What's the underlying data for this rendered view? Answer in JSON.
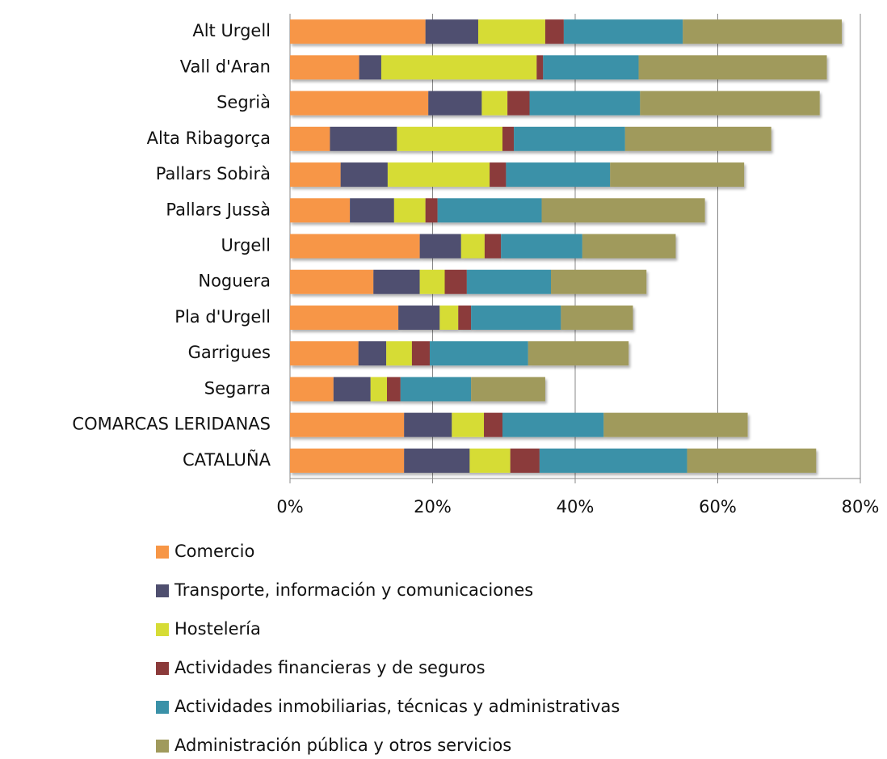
{
  "chart_data": {
    "type": "stacked_barh",
    "categories": [
      "Alt Urgell",
      "Vall d'Aran",
      "Segrià",
      "Alta Ribagorça",
      "Pallars Sobirà",
      "Pallars Jussà",
      "Urgell",
      "Noguera",
      "Pla d'Urgell",
      "Garrigues",
      "Segarra",
      "COMARCAS LERIDANAS",
      "CATALUÑA"
    ],
    "series": [
      {
        "name": "Comercio",
        "color": "#f79646",
        "values": [
          19.0,
          9.7,
          19.4,
          5.6,
          7.1,
          8.4,
          18.2,
          11.7,
          15.2,
          9.6,
          6.1,
          16.0,
          16.0
        ]
      },
      {
        "name": "Transporte, información y comunicaciones",
        "color": "#4f4f6f",
        "values": [
          7.4,
          3.1,
          7.5,
          9.4,
          6.6,
          6.2,
          5.8,
          6.5,
          5.8,
          3.9,
          5.2,
          6.7,
          9.2
        ]
      },
      {
        "name": "Hostelería",
        "color": "#d6dc36",
        "values": [
          9.4,
          21.8,
          3.6,
          14.8,
          14.3,
          4.4,
          3.3,
          3.5,
          2.6,
          3.6,
          2.3,
          4.5,
          5.7
        ]
      },
      {
        "name": "Actividades financieras y de seguros",
        "color": "#8b3a3a",
        "values": [
          2.6,
          0.9,
          3.1,
          1.6,
          2.3,
          1.7,
          2.3,
          3.1,
          1.8,
          2.5,
          1.9,
          2.6,
          4.1
        ]
      },
      {
        "name": "Actividades inmobiliarias, técnicas y administrativas",
        "color": "#3a91a8",
        "values": [
          16.7,
          13.4,
          15.5,
          15.6,
          14.6,
          14.6,
          11.4,
          11.8,
          12.6,
          13.8,
          9.9,
          14.2,
          20.7
        ]
      },
      {
        "name": "Administración pública y otros servicios",
        "color": "#a09a5c",
        "values": [
          22.3,
          26.4,
          25.2,
          20.5,
          18.8,
          22.9,
          13.1,
          13.4,
          10.1,
          14.1,
          10.4,
          20.2,
          18.1
        ]
      }
    ],
    "xlim": [
      0,
      80
    ],
    "xticks": [
      {
        "value": 0,
        "label": "0%"
      },
      {
        "value": 20,
        "label": "20%"
      },
      {
        "value": 40,
        "label": "40%"
      },
      {
        "value": 60,
        "label": "60%"
      },
      {
        "value": 80,
        "label": "80%"
      }
    ],
    "grid": true,
    "legend": "bottom"
  }
}
